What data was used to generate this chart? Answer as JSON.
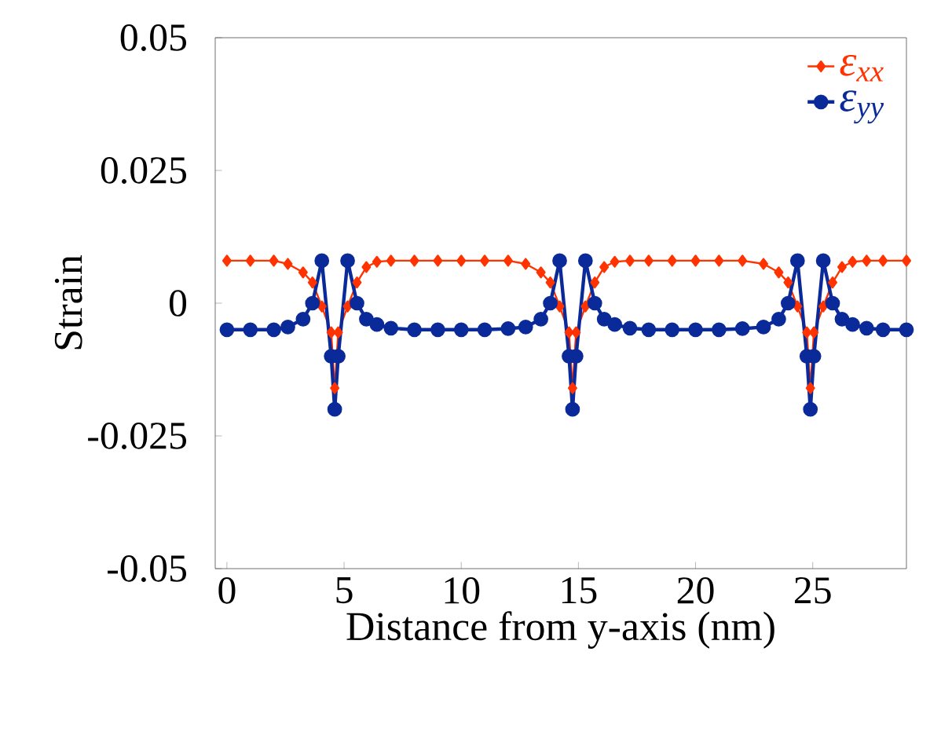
{
  "chart_data": {
    "type": "line",
    "xlabel": "Distance from y-axis (nm)",
    "ylabel": "Strain",
    "xlim": [
      -0.5,
      29
    ],
    "ylim": [
      -0.05,
      0.05
    ],
    "xticks": [
      0,
      5,
      10,
      15,
      20,
      25
    ],
    "yticks": [
      -0.05,
      -0.025,
      0,
      0.025,
      0.05
    ],
    "legend": "top right",
    "grid": false,
    "series": [
      {
        "name": "ε$_{xx}$",
        "color": "#ff3300",
        "marker": "diamond",
        "x": [
          0,
          1,
          2,
          2.6,
          3.25,
          3.65,
          4.05,
          4.45,
          4.6,
          4.75,
          5.15,
          5.55,
          5.95,
          6.4,
          7,
          8,
          9,
          10,
          11,
          12,
          12.75,
          13.4,
          13.8,
          14.2,
          14.6,
          14.75,
          14.9,
          15.3,
          15.7,
          16.1,
          16.55,
          17.2,
          18,
          19,
          20,
          21,
          22,
          22.9,
          23.55,
          23.95,
          24.35,
          24.75,
          24.9,
          25.05,
          25.45,
          25.85,
          26.25,
          26.7,
          27.3,
          28,
          29
        ],
        "values": [
          0.008,
          0.008,
          0.008,
          0.0074,
          0.0058,
          0.0039,
          -0.0006,
          -0.0055,
          -0.016,
          -0.0055,
          -0.0006,
          0.0039,
          0.0068,
          0.0078,
          0.008,
          0.008,
          0.008,
          0.008,
          0.008,
          0.008,
          0.0074,
          0.0058,
          0.0039,
          -0.0006,
          -0.0055,
          -0.016,
          -0.0055,
          -0.0006,
          0.0039,
          0.0068,
          0.0078,
          0.008,
          0.008,
          0.008,
          0.008,
          0.008,
          0.008,
          0.0074,
          0.0058,
          0.0039,
          -0.0006,
          -0.0055,
          -0.016,
          -0.0055,
          -0.0006,
          0.0039,
          0.0068,
          0.0078,
          0.008,
          0.008,
          0.008
        ]
      },
      {
        "name": "ε$_{yy}$",
        "color": "#0a2a9a",
        "marker": "circle",
        "x": [
          0,
          1,
          2,
          2.6,
          3.25,
          3.65,
          4.05,
          4.45,
          4.6,
          4.75,
          5.15,
          5.55,
          5.95,
          6.4,
          7,
          8,
          9,
          10,
          11,
          12,
          12.75,
          13.4,
          13.8,
          14.2,
          14.6,
          14.75,
          14.9,
          15.3,
          15.7,
          16.1,
          16.55,
          17.2,
          18,
          19,
          20,
          21,
          22,
          22.9,
          23.55,
          23.95,
          24.35,
          24.75,
          24.9,
          25.05,
          25.45,
          25.85,
          26.25,
          26.7,
          27.3,
          28,
          29
        ],
        "values": [
          -0.005,
          -0.005,
          -0.005,
          -0.0045,
          -0.003,
          0,
          0.008,
          -0.01,
          -0.02,
          -0.01,
          0.008,
          0,
          -0.003,
          -0.004,
          -0.0047,
          -0.005,
          -0.005,
          -0.005,
          -0.005,
          -0.0048,
          -0.0045,
          -0.003,
          0,
          0.008,
          -0.01,
          -0.02,
          -0.01,
          0.008,
          0,
          -0.003,
          -0.004,
          -0.0047,
          -0.005,
          -0.005,
          -0.005,
          -0.005,
          -0.0048,
          -0.0045,
          -0.003,
          0,
          0.008,
          -0.01,
          -0.02,
          -0.01,
          0.008,
          0,
          -0.003,
          -0.004,
          -0.0047,
          -0.005,
          -0.005
        ]
      }
    ]
  }
}
